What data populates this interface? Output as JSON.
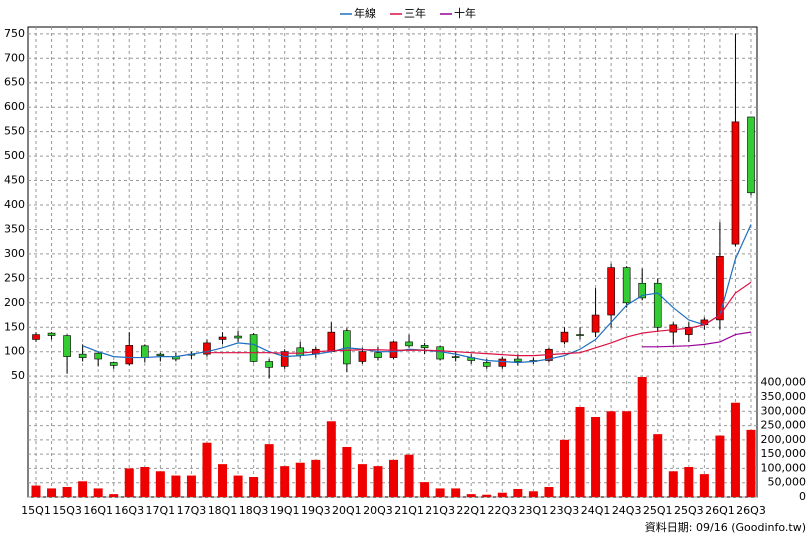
{
  "chart_data": {
    "type": "candlestick",
    "categories": [
      "15Q1",
      null,
      "15Q3",
      null,
      "16Q1",
      null,
      "16Q3",
      null,
      "17Q1",
      null,
      "17Q3",
      null,
      "18Q1",
      null,
      "18Q3",
      null,
      "19Q1",
      null,
      "19Q3",
      null,
      "20Q1",
      null,
      "20Q3",
      null,
      "21Q1",
      null,
      "21Q3",
      null,
      "22Q1",
      null,
      "22Q3",
      null,
      "23Q1",
      null,
      "23Q3",
      null,
      "24Q1",
      null,
      "24Q3",
      null,
      "25Q1",
      null,
      "25Q3",
      null,
      "26Q1",
      null,
      "26Q3"
    ],
    "open": [
      125,
      138,
      133,
      95,
      97,
      78,
      75,
      112,
      95,
      90,
      95,
      95,
      125,
      132,
      135,
      80,
      70,
      108,
      95,
      100,
      143,
      80,
      98,
      88,
      120,
      113,
      110,
      90,
      88,
      78,
      70,
      85,
      82,
      82,
      120,
      135,
      140,
      175,
      272,
      240,
      240,
      140,
      135,
      155,
      165,
      320,
      580
    ],
    "high": [
      140,
      140,
      135,
      115,
      100,
      80,
      140,
      115,
      98,
      98,
      100,
      125,
      140,
      143,
      138,
      85,
      105,
      120,
      110,
      160,
      148,
      108,
      110,
      122,
      135,
      118,
      112,
      100,
      95,
      85,
      90,
      95,
      88,
      108,
      150,
      150,
      230,
      280,
      275,
      270,
      250,
      160,
      160,
      170,
      365,
      750,
      580
    ],
    "low": [
      120,
      125,
      55,
      80,
      70,
      65,
      72,
      78,
      80,
      80,
      85,
      90,
      115,
      120,
      78,
      45,
      65,
      88,
      88,
      100,
      58,
      75,
      82,
      85,
      108,
      95,
      82,
      80,
      75,
      65,
      65,
      72,
      75,
      78,
      115,
      125,
      130,
      150,
      190,
      205,
      140,
      115,
      120,
      145,
      145,
      315,
      420
    ],
    "close": [
      135,
      133,
      90,
      88,
      85,
      72,
      113,
      88,
      92,
      85,
      93,
      118,
      130,
      128,
      80,
      68,
      100,
      92,
      105,
      140,
      75,
      100,
      88,
      120,
      112,
      108,
      85,
      88,
      82,
      70,
      85,
      80,
      80,
      105,
      140,
      133,
      175,
      272,
      200,
      210,
      150,
      155,
      150,
      165,
      295,
      570,
      425
    ],
    "volume": [
      40000,
      30000,
      35000,
      55000,
      30000,
      10000,
      100000,
      105000,
      90000,
      75000,
      75000,
      190000,
      115000,
      75000,
      70000,
      185000,
      108000,
      120000,
      130000,
      265000,
      175000,
      115000,
      108000,
      130000,
      148000,
      52000,
      30000,
      30000,
      10000,
      8000,
      15000,
      28000,
      20000,
      35000,
      200000,
      315000,
      280000,
      300000,
      300000,
      420000,
      220000,
      90000,
      105000,
      80000,
      215000,
      330000,
      235000
    ],
    "up_color": "#ee0000",
    "down_color": "#33cc33",
    "volume_color": "#ee0000",
    "series": [
      {
        "name": "年線",
        "color": "#1f6fbf",
        "values": [
          null,
          null,
          null,
          112,
          100,
          90,
          88,
          88,
          90,
          90,
          95,
          100,
          108,
          118,
          115,
          100,
          90,
          92,
          95,
          100,
          108,
          105,
          100,
          100,
          105,
          103,
          100,
          95,
          88,
          82,
          80,
          78,
          80,
          85,
          92,
          105,
          125,
          160,
          195,
          215,
          220,
          190,
          165,
          155,
          175,
          290,
          360
        ]
      },
      {
        "name": "三年",
        "color": "#dd1144",
        "values": [
          null,
          null,
          null,
          null,
          null,
          null,
          null,
          null,
          null,
          null,
          null,
          98,
          98,
          98,
          98,
          98,
          97,
          97,
          100,
          102,
          103,
          104,
          104,
          103,
          103,
          103,
          102,
          100,
          98,
          96,
          94,
          92,
          92,
          94,
          96,
          98,
          108,
          118,
          130,
          138,
          142,
          145,
          148,
          155,
          175,
          220,
          242
        ]
      },
      {
        "name": "十年",
        "color": "#990099",
        "values": [
          null,
          null,
          null,
          null,
          null,
          null,
          null,
          null,
          null,
          null,
          null,
          null,
          null,
          null,
          null,
          null,
          null,
          null,
          null,
          null,
          null,
          null,
          null,
          null,
          null,
          null,
          null,
          null,
          null,
          null,
          null,
          null,
          null,
          null,
          null,
          null,
          null,
          null,
          null,
          110,
          110,
          111,
          112,
          115,
          120,
          135,
          140
        ]
      }
    ],
    "ylim": [
      36,
      764
    ],
    "yticks": [
      50,
      100,
      150,
      200,
      250,
      300,
      350,
      400,
      450,
      500,
      550,
      600,
      650,
      700,
      750
    ],
    "y2lim": [
      0,
      420000
    ],
    "y2ticks": [
      0,
      {
        "value": 50000,
        "label": "50,000"
      },
      {
        "value": 100000,
        "label": "100,000"
      },
      {
        "value": 150000,
        "label": "150,000"
      },
      {
        "value": 200000,
        "label": "200,000"
      },
      {
        "value": 250000,
        "label": "250,000"
      },
      {
        "value": 300000,
        "label": "300,000"
      },
      {
        "value": 350000,
        "label": "350,000"
      },
      {
        "value": 400000,
        "label": "400,000"
      }
    ],
    "grid": true,
    "note": "資料日期: 09/16 (Goodinfo.tw)"
  }
}
